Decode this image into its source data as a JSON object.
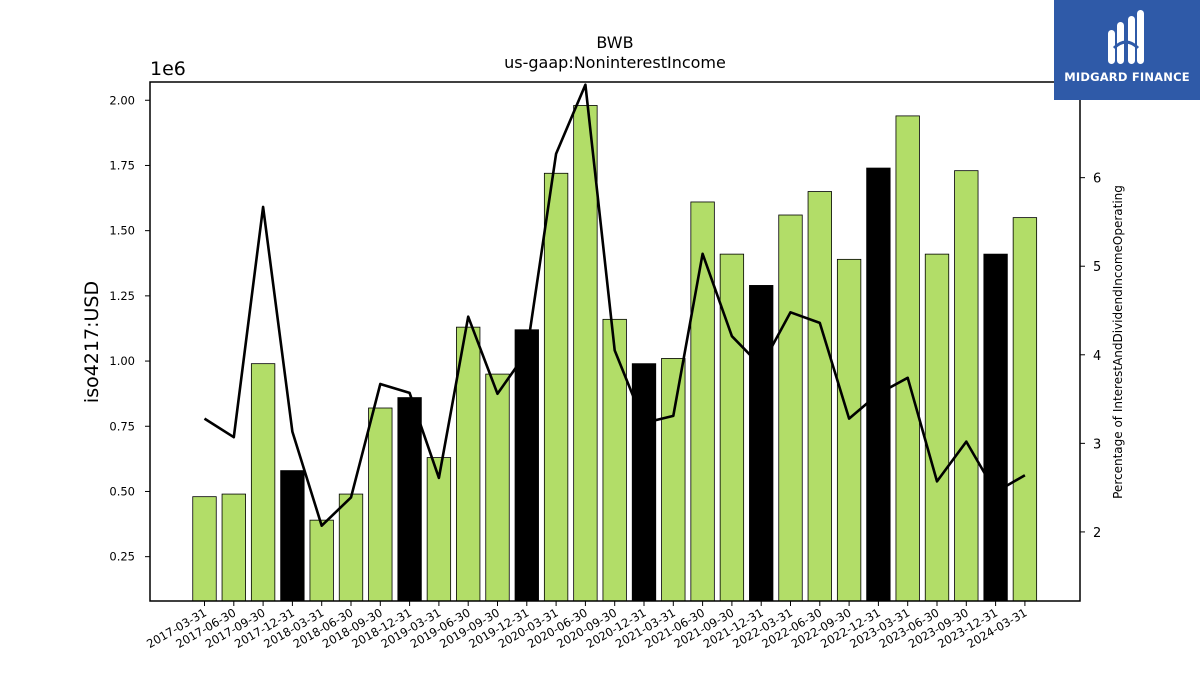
{
  "brand": {
    "name": "MIDGARD FINANCE",
    "accent": "#2f5aa8"
  },
  "chart_data": {
    "type": "bar",
    "title": "BWB",
    "subtitle": "us-gaap:NoninterestIncome",
    "ylabel": "iso4217:USD",
    "y_multiplier": "1e6",
    "y2label": "Percentage of InterestAndDividendIncomeOperating",
    "ylim": [
      0.08,
      2.07
    ],
    "y2lim": [
      1.22,
      7.08
    ],
    "yticks": [
      "0.25",
      "0.50",
      "0.75",
      "1.00",
      "1.25",
      "1.50",
      "1.75",
      "2.00"
    ],
    "y2ticks": [
      "2",
      "3",
      "4",
      "5",
      "6"
    ],
    "categories": [
      "2017-03-31",
      "2017-06-30",
      "2017-09-30",
      "2017-12-31",
      "2018-03-31",
      "2018-06-30",
      "2018-09-30",
      "2018-12-31",
      "2019-03-31",
      "2019-06-30",
      "2019-09-30",
      "2019-12-31",
      "2020-03-31",
      "2020-06-30",
      "2020-09-30",
      "2020-12-31",
      "2021-03-31",
      "2021-06-30",
      "2021-09-30",
      "2021-12-31",
      "2022-03-31",
      "2022-06-30",
      "2022-09-30",
      "2022-12-31",
      "2023-03-31",
      "2023-06-30",
      "2023-09-30",
      "2023-12-31",
      "2024-03-31"
    ],
    "series": [
      {
        "kind": "bar",
        "axis": "left",
        "values": [
          0.48,
          0.49,
          0.99,
          0.58,
          0.39,
          0.49,
          0.82,
          0.86,
          0.63,
          1.13,
          0.95,
          1.12,
          1.72,
          1.98,
          1.16,
          0.99,
          1.01,
          1.61,
          1.41,
          1.29,
          1.56,
          1.65,
          1.39,
          1.74,
          1.94,
          1.41,
          1.73,
          1.41,
          1.55
        ],
        "highlight_indices": [
          3,
          7,
          11,
          15,
          19,
          23,
          27
        ],
        "color": "#b2dd68",
        "highlight_color": "#000000"
      },
      {
        "kind": "line",
        "axis": "right",
        "values": [
          3.28,
          3.07,
          5.67,
          3.13,
          2.07,
          2.39,
          3.67,
          3.57,
          2.61,
          4.43,
          3.56,
          4.03,
          6.27,
          7.05,
          4.05,
          3.23,
          3.31,
          5.14,
          4.21,
          3.87,
          4.48,
          4.36,
          3.28,
          3.56,
          3.74,
          2.57,
          3.02,
          2.45,
          2.64
        ],
        "color": "#000000"
      }
    ],
    "grid": false,
    "legend": "none"
  }
}
